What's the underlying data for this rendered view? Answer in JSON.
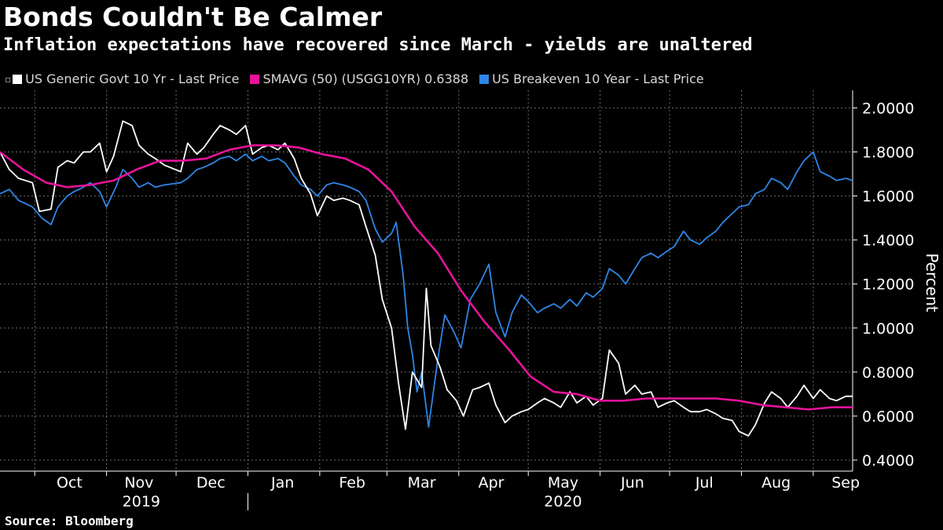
{
  "header": {
    "title": "Bonds Couldn't Be Calmer",
    "subtitle": "Inflation expectations have recovered since March - yields are unaltered"
  },
  "footer": {
    "source": "Source: Bloomberg"
  },
  "legend": [
    {
      "label": "US Generic Govt 10 Yr - Last Price",
      "color": "#ffffff"
    },
    {
      "label": "SMAVG (50) (USGG10YR) 0.6388",
      "color": "#e6139a"
    },
    {
      "label": "US Breakeven 10 Year - Last Price",
      "color": "#2e86e6"
    }
  ],
  "chart_data": {
    "type": "line",
    "title": "Bonds Couldn't Be Calmer",
    "subtitle": "Inflation expectations have recovered since March - yields are unaltered",
    "xlabel": "",
    "ylabel": "Percent",
    "ylim": [
      0.35,
      2.08
    ],
    "xlim": [
      "2019-09-16",
      "2020-09-18"
    ],
    "grid": true,
    "yticks": [
      "0.4000",
      "0.6000",
      "0.8000",
      "1.0000",
      "1.2000",
      "1.4000",
      "1.6000",
      "1.8000",
      "2.0000"
    ],
    "ytick_values": [
      0.4,
      0.6,
      0.8,
      1.0,
      1.2,
      1.4,
      1.6,
      1.8,
      2.0
    ],
    "month_labels": [
      {
        "label": "Oct",
        "date": "2019-10-16"
      },
      {
        "label": "Nov",
        "date": "2019-11-15"
      },
      {
        "label": "Dec",
        "date": "2019-12-16"
      },
      {
        "label": "Jan",
        "date": "2020-01-16"
      },
      {
        "label": "Feb",
        "date": "2020-02-15"
      },
      {
        "label": "Mar",
        "date": "2020-03-16"
      },
      {
        "label": "Apr",
        "date": "2020-04-15"
      },
      {
        "label": "May",
        "date": "2020-05-16"
      },
      {
        "label": "Jun",
        "date": "2020-06-15"
      },
      {
        "label": "Jul",
        "date": "2020-07-16"
      },
      {
        "label": "Aug",
        "date": "2020-08-16"
      },
      {
        "label": "Sep",
        "date": "2020-09-15"
      }
    ],
    "month_boundaries": [
      "2019-10-01",
      "2019-11-01",
      "2019-12-01",
      "2020-01-01",
      "2020-02-01",
      "2020-03-01",
      "2020-04-01",
      "2020-05-01",
      "2020-06-01",
      "2020-07-01",
      "2020-08-01",
      "2020-09-01"
    ],
    "year_labels": [
      {
        "label": "2019",
        "date": "2019-11-16"
      },
      {
        "label": "2020",
        "date": "2020-05-16"
      }
    ],
    "year_divider": "2020-01-01",
    "series": [
      {
        "name": "US Generic Govt 10 Yr - Last Price",
        "color": "#ffffff",
        "points": [
          [
            "2019-09-16",
            1.8
          ],
          [
            "2019-09-20",
            1.72
          ],
          [
            "2019-09-24",
            1.68
          ],
          [
            "2019-09-30",
            1.66
          ],
          [
            "2019-10-03",
            1.53
          ],
          [
            "2019-10-08",
            1.54
          ],
          [
            "2019-10-11",
            1.73
          ],
          [
            "2019-10-15",
            1.76
          ],
          [
            "2019-10-18",
            1.75
          ],
          [
            "2019-10-22",
            1.8
          ],
          [
            "2019-10-25",
            1.8
          ],
          [
            "2019-10-29",
            1.84
          ],
          [
            "2019-11-01",
            1.71
          ],
          [
            "2019-11-04",
            1.78
          ],
          [
            "2019-11-08",
            1.94
          ],
          [
            "2019-11-12",
            1.92
          ],
          [
            "2019-11-15",
            1.83
          ],
          [
            "2019-11-19",
            1.79
          ],
          [
            "2019-11-22",
            1.77
          ],
          [
            "2019-11-26",
            1.74
          ],
          [
            "2019-12-03",
            1.71
          ],
          [
            "2019-12-06",
            1.84
          ],
          [
            "2019-12-10",
            1.79
          ],
          [
            "2019-12-13",
            1.82
          ],
          [
            "2019-12-17",
            1.88
          ],
          [
            "2019-12-20",
            1.92
          ],
          [
            "2019-12-24",
            1.9
          ],
          [
            "2019-12-27",
            1.88
          ],
          [
            "2019-12-31",
            1.92
          ],
          [
            "2020-01-03",
            1.79
          ],
          [
            "2020-01-07",
            1.82
          ],
          [
            "2020-01-10",
            1.83
          ],
          [
            "2020-01-14",
            1.81
          ],
          [
            "2020-01-17",
            1.84
          ],
          [
            "2020-01-21",
            1.77
          ],
          [
            "2020-01-24",
            1.68
          ],
          [
            "2020-01-28",
            1.61
          ],
          [
            "2020-01-31",
            1.51
          ],
          [
            "2020-02-04",
            1.6
          ],
          [
            "2020-02-07",
            1.58
          ],
          [
            "2020-02-11",
            1.59
          ],
          [
            "2020-02-14",
            1.58
          ],
          [
            "2020-02-18",
            1.56
          ],
          [
            "2020-02-21",
            1.46
          ],
          [
            "2020-02-25",
            1.33
          ],
          [
            "2020-02-28",
            1.13
          ],
          [
            "2020-03-03",
            1.0
          ],
          [
            "2020-03-06",
            0.75
          ],
          [
            "2020-03-09",
            0.54
          ],
          [
            "2020-03-12",
            0.8
          ],
          [
            "2020-03-16",
            0.73
          ],
          [
            "2020-03-18",
            1.18
          ],
          [
            "2020-03-20",
            0.92
          ],
          [
            "2020-03-24",
            0.82
          ],
          [
            "2020-03-27",
            0.72
          ],
          [
            "2020-03-31",
            0.67
          ],
          [
            "2020-04-03",
            0.6
          ],
          [
            "2020-04-07",
            0.72
          ],
          [
            "2020-04-10",
            0.73
          ],
          [
            "2020-04-14",
            0.75
          ],
          [
            "2020-04-17",
            0.65
          ],
          [
            "2020-04-21",
            0.57
          ],
          [
            "2020-04-24",
            0.6
          ],
          [
            "2020-04-28",
            0.62
          ],
          [
            "2020-05-01",
            0.63
          ],
          [
            "2020-05-05",
            0.66
          ],
          [
            "2020-05-08",
            0.68
          ],
          [
            "2020-05-12",
            0.66
          ],
          [
            "2020-05-15",
            0.64
          ],
          [
            "2020-05-19",
            0.71
          ],
          [
            "2020-05-22",
            0.66
          ],
          [
            "2020-05-26",
            0.69
          ],
          [
            "2020-05-29",
            0.65
          ],
          [
            "2020-06-02",
            0.68
          ],
          [
            "2020-06-05",
            0.9
          ],
          [
            "2020-06-09",
            0.84
          ],
          [
            "2020-06-12",
            0.7
          ],
          [
            "2020-06-16",
            0.74
          ],
          [
            "2020-06-19",
            0.7
          ],
          [
            "2020-06-23",
            0.71
          ],
          [
            "2020-06-26",
            0.64
          ],
          [
            "2020-06-30",
            0.66
          ],
          [
            "2020-07-03",
            0.67
          ],
          [
            "2020-07-07",
            0.64
          ],
          [
            "2020-07-10",
            0.62
          ],
          [
            "2020-07-14",
            0.62
          ],
          [
            "2020-07-17",
            0.63
          ],
          [
            "2020-07-21",
            0.61
          ],
          [
            "2020-07-24",
            0.59
          ],
          [
            "2020-07-28",
            0.58
          ],
          [
            "2020-07-31",
            0.53
          ],
          [
            "2020-08-04",
            0.51
          ],
          [
            "2020-08-07",
            0.56
          ],
          [
            "2020-08-11",
            0.66
          ],
          [
            "2020-08-14",
            0.71
          ],
          [
            "2020-08-18",
            0.68
          ],
          [
            "2020-08-21",
            0.64
          ],
          [
            "2020-08-25",
            0.69
          ],
          [
            "2020-08-28",
            0.74
          ],
          [
            "2020-09-01",
            0.68
          ],
          [
            "2020-09-04",
            0.72
          ],
          [
            "2020-09-08",
            0.68
          ],
          [
            "2020-09-11",
            0.67
          ],
          [
            "2020-09-15",
            0.69
          ],
          [
            "2020-09-18",
            0.69
          ]
        ]
      },
      {
        "name": "SMAVG (50) (USGG10YR) 0.6388",
        "color": "#e6139a",
        "points": [
          [
            "2019-09-16",
            1.8
          ],
          [
            "2019-09-26",
            1.72
          ],
          [
            "2019-10-06",
            1.66
          ],
          [
            "2019-10-15",
            1.64
          ],
          [
            "2019-10-25",
            1.65
          ],
          [
            "2019-11-04",
            1.67
          ],
          [
            "2019-11-14",
            1.72
          ],
          [
            "2019-11-24",
            1.76
          ],
          [
            "2019-12-04",
            1.76
          ],
          [
            "2019-12-14",
            1.77
          ],
          [
            "2019-12-24",
            1.81
          ],
          [
            "2020-01-03",
            1.83
          ],
          [
            "2020-01-13",
            1.83
          ],
          [
            "2020-01-23",
            1.82
          ],
          [
            "2020-02-02",
            1.79
          ],
          [
            "2020-02-12",
            1.77
          ],
          [
            "2020-02-22",
            1.72
          ],
          [
            "2020-03-03",
            1.62
          ],
          [
            "2020-03-13",
            1.46
          ],
          [
            "2020-03-23",
            1.34
          ],
          [
            "2020-04-02",
            1.17
          ],
          [
            "2020-04-12",
            1.03
          ],
          [
            "2020-04-22",
            0.91
          ],
          [
            "2020-05-02",
            0.78
          ],
          [
            "2020-05-12",
            0.71
          ],
          [
            "2020-05-22",
            0.7
          ],
          [
            "2020-06-01",
            0.67
          ],
          [
            "2020-06-11",
            0.67
          ],
          [
            "2020-06-21",
            0.68
          ],
          [
            "2020-07-01",
            0.68
          ],
          [
            "2020-07-11",
            0.68
          ],
          [
            "2020-07-21",
            0.68
          ],
          [
            "2020-07-31",
            0.67
          ],
          [
            "2020-08-10",
            0.65
          ],
          [
            "2020-08-20",
            0.64
          ],
          [
            "2020-08-30",
            0.63
          ],
          [
            "2020-09-09",
            0.64
          ],
          [
            "2020-09-18",
            0.64
          ]
        ]
      },
      {
        "name": "US Breakeven 10 Year - Last Price",
        "color": "#2e86e6",
        "points": [
          [
            "2019-09-16",
            1.61
          ],
          [
            "2019-09-20",
            1.63
          ],
          [
            "2019-09-24",
            1.58
          ],
          [
            "2019-09-30",
            1.55
          ],
          [
            "2019-10-04",
            1.5
          ],
          [
            "2019-10-08",
            1.47
          ],
          [
            "2019-10-11",
            1.55
          ],
          [
            "2019-10-15",
            1.6
          ],
          [
            "2019-10-18",
            1.62
          ],
          [
            "2019-10-22",
            1.64
          ],
          [
            "2019-10-25",
            1.66
          ],
          [
            "2019-10-29",
            1.62
          ],
          [
            "2019-11-01",
            1.55
          ],
          [
            "2019-11-05",
            1.64
          ],
          [
            "2019-11-08",
            1.72
          ],
          [
            "2019-11-12",
            1.68
          ],
          [
            "2019-11-15",
            1.64
          ],
          [
            "2019-11-19",
            1.66
          ],
          [
            "2019-11-22",
            1.64
          ],
          [
            "2019-11-26",
            1.65
          ],
          [
            "2019-12-03",
            1.66
          ],
          [
            "2019-12-06",
            1.68
          ],
          [
            "2019-12-10",
            1.72
          ],
          [
            "2019-12-13",
            1.73
          ],
          [
            "2019-12-17",
            1.75
          ],
          [
            "2019-12-20",
            1.77
          ],
          [
            "2019-12-24",
            1.78
          ],
          [
            "2019-12-27",
            1.76
          ],
          [
            "2019-12-31",
            1.79
          ],
          [
            "2020-01-03",
            1.76
          ],
          [
            "2020-01-07",
            1.78
          ],
          [
            "2020-01-10",
            1.76
          ],
          [
            "2020-01-14",
            1.77
          ],
          [
            "2020-01-17",
            1.75
          ],
          [
            "2020-01-21",
            1.69
          ],
          [
            "2020-01-24",
            1.65
          ],
          [
            "2020-01-28",
            1.63
          ],
          [
            "2020-01-31",
            1.6
          ],
          [
            "2020-02-04",
            1.65
          ],
          [
            "2020-02-07",
            1.66
          ],
          [
            "2020-02-11",
            1.65
          ],
          [
            "2020-02-14",
            1.64
          ],
          [
            "2020-02-18",
            1.62
          ],
          [
            "2020-02-21",
            1.58
          ],
          [
            "2020-02-25",
            1.45
          ],
          [
            "2020-02-28",
            1.39
          ],
          [
            "2020-03-03",
            1.43
          ],
          [
            "2020-03-05",
            1.48
          ],
          [
            "2020-03-08",
            1.24
          ],
          [
            "2020-03-10",
            1.0
          ],
          [
            "2020-03-12",
            0.88
          ],
          [
            "2020-03-14",
            0.71
          ],
          [
            "2020-03-16",
            0.8
          ],
          [
            "2020-03-19",
            0.55
          ],
          [
            "2020-03-23",
            0.86
          ],
          [
            "2020-03-26",
            1.06
          ],
          [
            "2020-03-30",
            0.98
          ],
          [
            "2020-04-02",
            0.91
          ],
          [
            "2020-04-06",
            1.13
          ],
          [
            "2020-04-10",
            1.2
          ],
          [
            "2020-04-14",
            1.29
          ],
          [
            "2020-04-17",
            1.07
          ],
          [
            "2020-04-21",
            0.96
          ],
          [
            "2020-04-24",
            1.07
          ],
          [
            "2020-04-28",
            1.15
          ],
          [
            "2020-05-01",
            1.12
          ],
          [
            "2020-05-05",
            1.07
          ],
          [
            "2020-05-08",
            1.09
          ],
          [
            "2020-05-12",
            1.11
          ],
          [
            "2020-05-15",
            1.09
          ],
          [
            "2020-05-19",
            1.13
          ],
          [
            "2020-05-22",
            1.1
          ],
          [
            "2020-05-26",
            1.16
          ],
          [
            "2020-05-29",
            1.14
          ],
          [
            "2020-06-02",
            1.18
          ],
          [
            "2020-06-05",
            1.27
          ],
          [
            "2020-06-09",
            1.24
          ],
          [
            "2020-06-12",
            1.2
          ],
          [
            "2020-06-16",
            1.27
          ],
          [
            "2020-06-19",
            1.32
          ],
          [
            "2020-06-23",
            1.34
          ],
          [
            "2020-06-26",
            1.32
          ],
          [
            "2020-06-30",
            1.35
          ],
          [
            "2020-07-03",
            1.37
          ],
          [
            "2020-07-07",
            1.44
          ],
          [
            "2020-07-10",
            1.4
          ],
          [
            "2020-07-14",
            1.38
          ],
          [
            "2020-07-17",
            1.41
          ],
          [
            "2020-07-21",
            1.44
          ],
          [
            "2020-07-24",
            1.48
          ],
          [
            "2020-07-28",
            1.52
          ],
          [
            "2020-07-31",
            1.55
          ],
          [
            "2020-08-04",
            1.56
          ],
          [
            "2020-08-07",
            1.61
          ],
          [
            "2020-08-11",
            1.63
          ],
          [
            "2020-08-14",
            1.68
          ],
          [
            "2020-08-18",
            1.66
          ],
          [
            "2020-08-21",
            1.63
          ],
          [
            "2020-08-25",
            1.71
          ],
          [
            "2020-08-28",
            1.76
          ],
          [
            "2020-09-01",
            1.8
          ],
          [
            "2020-09-04",
            1.71
          ],
          [
            "2020-09-08",
            1.69
          ],
          [
            "2020-09-11",
            1.67
          ],
          [
            "2020-09-15",
            1.68
          ],
          [
            "2020-09-18",
            1.67
          ]
        ]
      }
    ]
  }
}
